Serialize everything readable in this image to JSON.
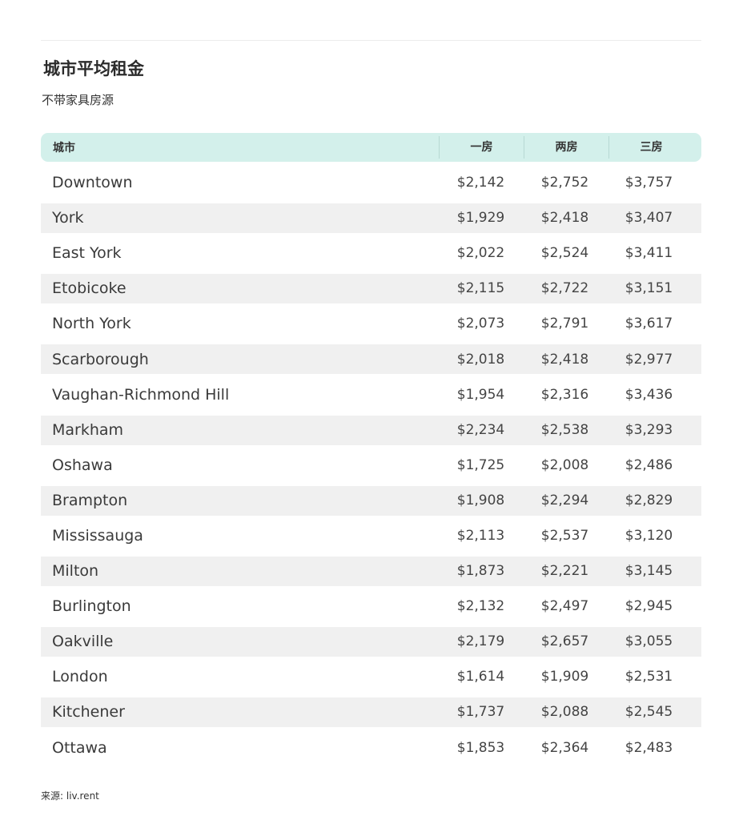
{
  "title": "城市平均租金",
  "subtitle": "不带家具房源",
  "table": {
    "headers": [
      "城市",
      "一房",
      "两房",
      "三房"
    ],
    "rows": [
      [
        "Downtown",
        "$2,142",
        "$2,752",
        "$3,757"
      ],
      [
        "York",
        "$1,929",
        "$2,418",
        "$3,407"
      ],
      [
        "East York",
        "$2,022",
        "$2,524",
        "$3,411"
      ],
      [
        "Etobicoke",
        "$2,115",
        "$2,722",
        "$3,151"
      ],
      [
        "North York",
        "$2,073",
        "$2,791",
        "$3,617"
      ],
      [
        "Scarborough",
        "$2,018",
        "$2,418",
        "$2,977"
      ],
      [
        "Vaughan-Richmond Hill",
        "$1,954",
        "$2,316",
        "$3,436"
      ],
      [
        "Markham",
        "$2,234",
        "$2,538",
        "$3,293"
      ],
      [
        "Oshawa",
        "$1,725",
        "$2,008",
        "$2,486"
      ],
      [
        "Brampton",
        "$1,908",
        "$2,294",
        "$2,829"
      ],
      [
        "Mississauga",
        "$2,113",
        "$2,537",
        "$3,120"
      ],
      [
        "Milton",
        "$1,873",
        "$2,221",
        "$3,145"
      ],
      [
        "Burlington",
        "$2,132",
        "$2,497",
        "$2,945"
      ],
      [
        "Oakville",
        "$2,179",
        "$2,657",
        "$3,055"
      ],
      [
        "London",
        "$1,614",
        "$1,909",
        "$2,531"
      ],
      [
        "Kitchener",
        "$1,737",
        "$2,088",
        "$2,545"
      ],
      [
        "Ottawa",
        "$1,853",
        "$2,364",
        "$2,483"
      ]
    ]
  },
  "source": "来源: liv.rent",
  "colors": {
    "header_bg": "#d3f0eb",
    "alt_row_bg": "#f0f0f0"
  }
}
